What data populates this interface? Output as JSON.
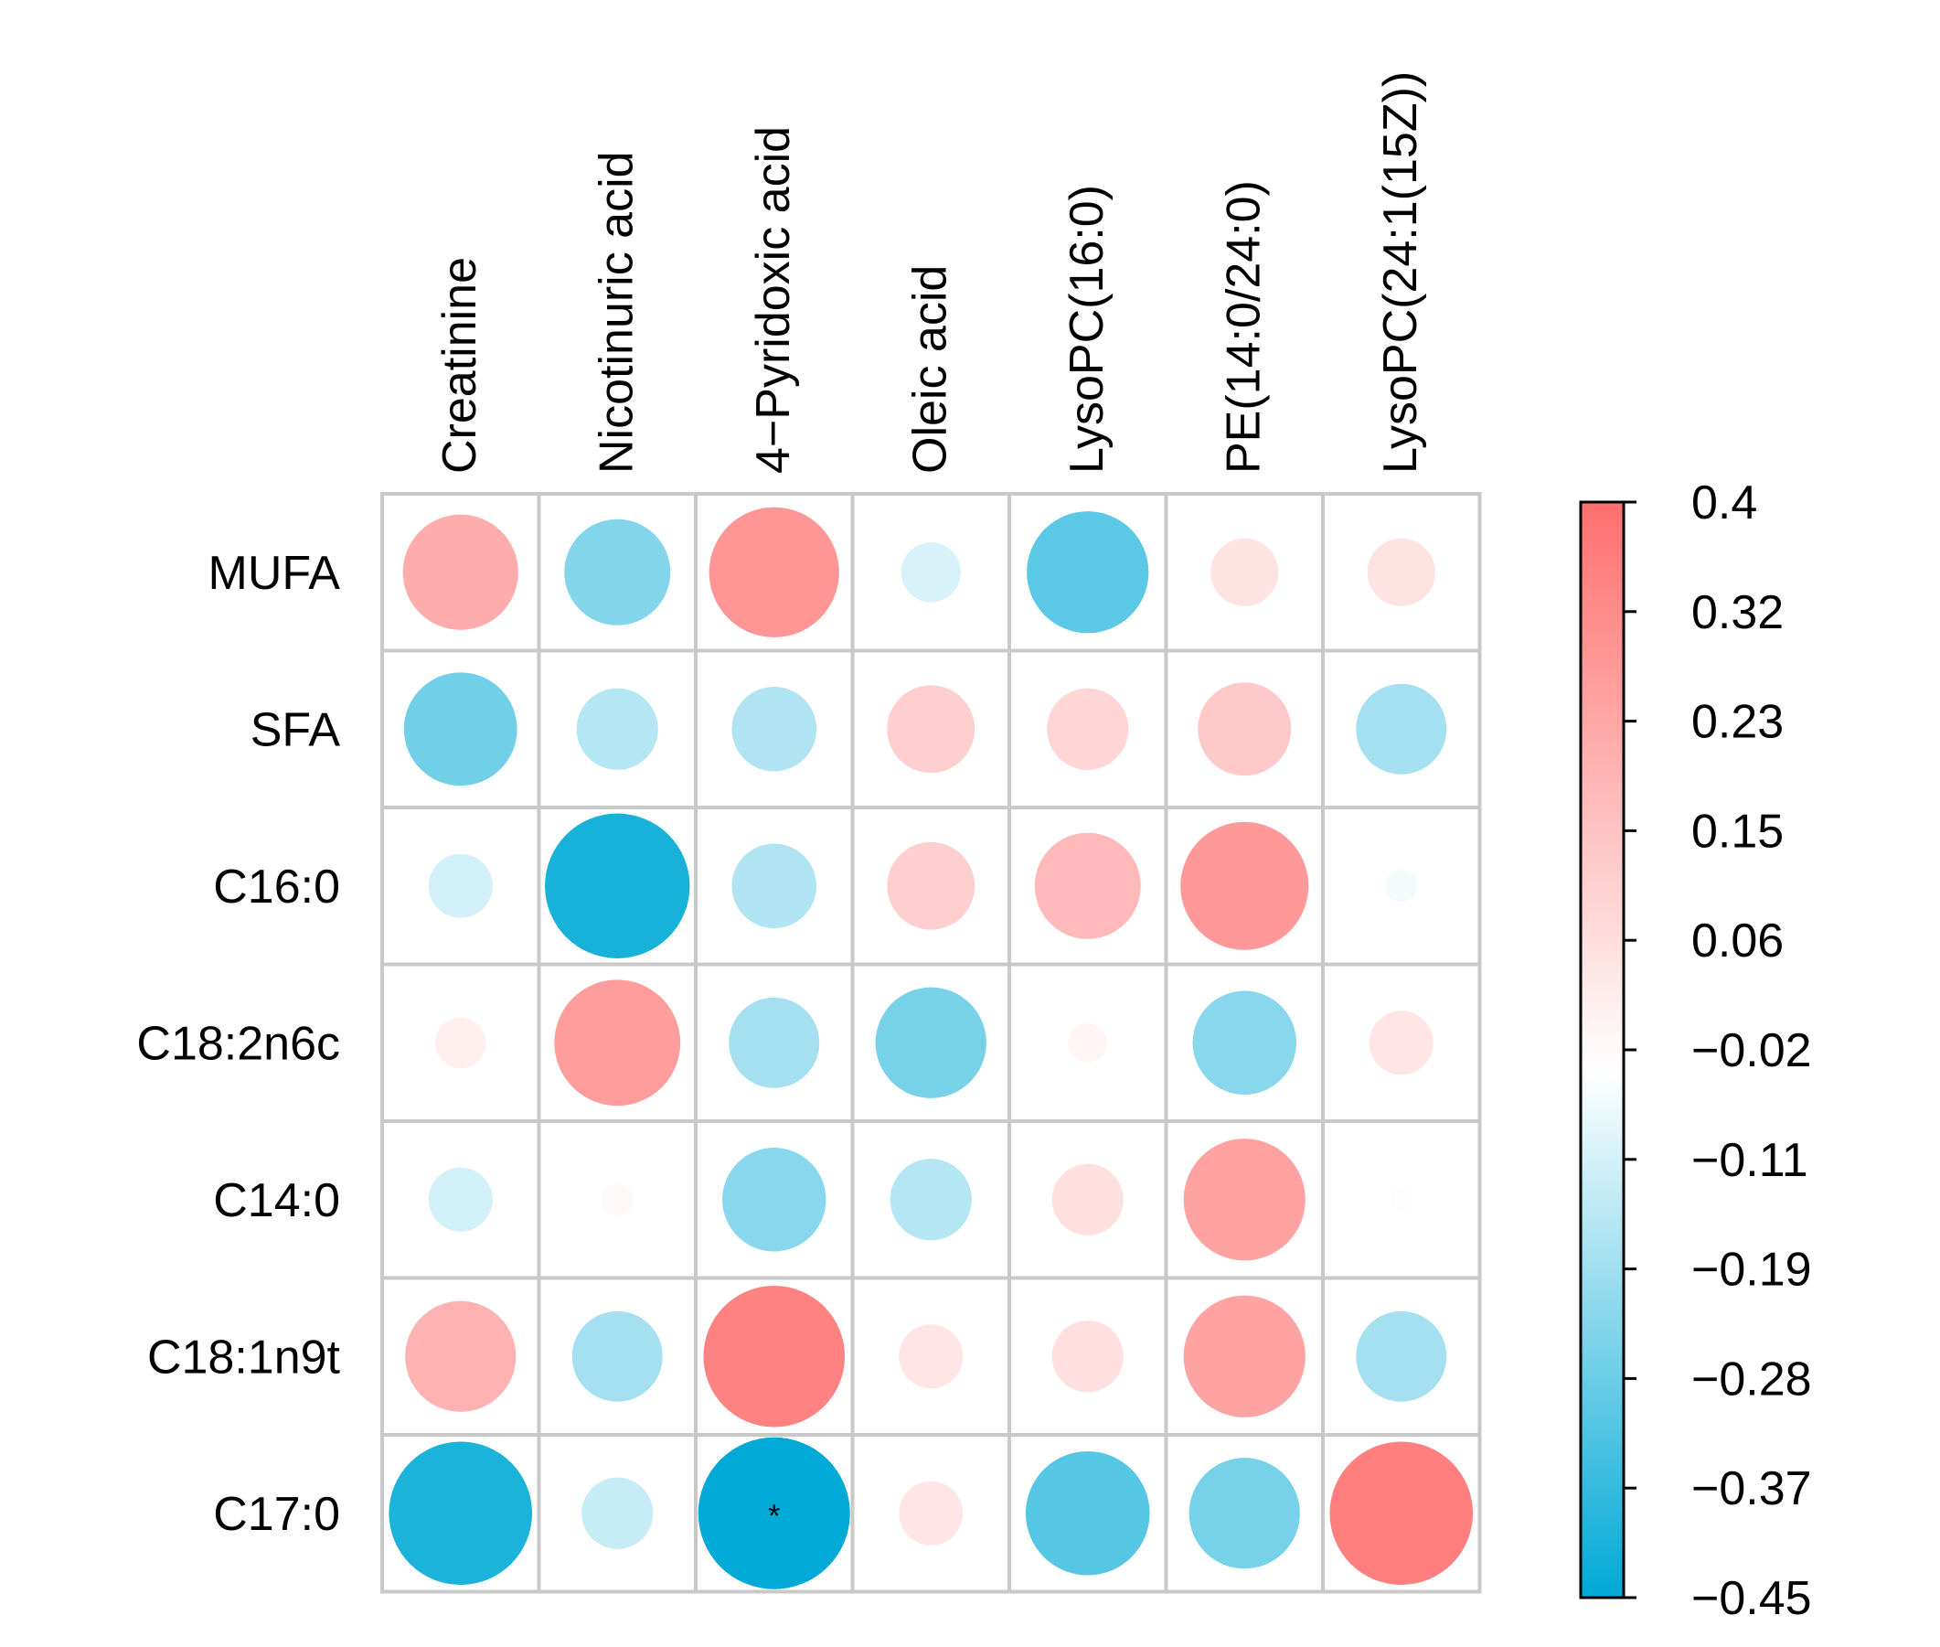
{
  "chart_data": {
    "type": "heatmap",
    "style": "circle correlation matrix",
    "columns": [
      "Creatinine",
      "Nicotinuric acid",
      "4−Pyridoxic acid",
      "Oleic acid",
      "LysoPC(16:0)",
      "PE(14:0/24:0)",
      "LysoPC(24:1(15Z))"
    ],
    "rows": [
      "MUFA",
      "SFA",
      "C16:0",
      "C18:2n6c",
      "C14:0",
      "C18:1n9t",
      "C17:0"
    ],
    "values": [
      [
        0.26,
        -0.22,
        0.33,
        -0.07,
        -0.29,
        0.09,
        0.09
      ],
      [
        -0.25,
        -0.13,
        -0.14,
        0.15,
        0.13,
        0.17,
        -0.16
      ],
      [
        -0.08,
        -0.41,
        -0.14,
        0.15,
        0.22,
        0.32,
        -0.02
      ],
      [
        0.05,
        0.31,
        -0.16,
        -0.24,
        0.03,
        -0.21,
        0.08
      ],
      [
        -0.08,
        0.02,
        -0.21,
        -0.13,
        0.1,
        0.29,
        0.01
      ],
      [
        0.24,
        -0.16,
        0.39,
        0.08,
        0.1,
        0.29,
        -0.16
      ],
      [
        -0.4,
        -0.1,
        -0.45,
        0.08,
        -0.3,
        -0.24,
        0.4
      ]
    ],
    "significance": [
      [
        "",
        "",
        "",
        "",
        "",
        "",
        ""
      ],
      [
        "",
        "",
        "",
        "",
        "",
        "",
        ""
      ],
      [
        "",
        "",
        "",
        "",
        "",
        "",
        ""
      ],
      [
        "",
        "",
        "",
        "",
        "",
        "",
        ""
      ],
      [
        "",
        "",
        "",
        "",
        "",
        "",
        ""
      ],
      [
        "",
        "",
        "",
        "",
        "",
        "",
        ""
      ],
      [
        "",
        "",
        "*",
        "",
        "",
        "",
        ""
      ]
    ],
    "colorbar": {
      "min": -0.45,
      "max": 0.4,
      "ticks": [
        "0.4",
        "0.32",
        "0.23",
        "0.15",
        "0.06",
        "−0.02",
        "−0.11",
        "−0.19",
        "−0.28",
        "−0.37",
        "−0.45"
      ],
      "color_negative": "#00a9d6",
      "color_zero": "#ffffff",
      "color_positive": "#ff6f6f"
    },
    "grid_color": "#c8c8c8"
  }
}
